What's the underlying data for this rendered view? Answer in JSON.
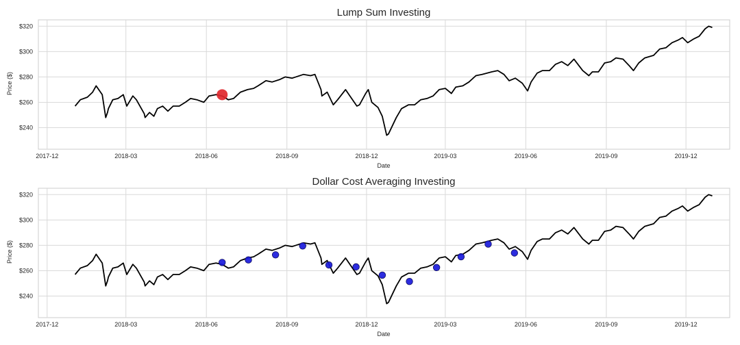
{
  "chart_data": [
    {
      "type": "line",
      "title": "Lump Sum Investing",
      "xlabel": "Date",
      "ylabel": "Price ($)",
      "xlim": [
        "2017-11-21",
        "2020-01-20"
      ],
      "ylim": [
        223,
        325
      ],
      "x_ticks": [
        "2017-12",
        "2018-03",
        "2018-06",
        "2018-09",
        "2018-12",
        "2019-03",
        "2019-06",
        "2019-09",
        "2019-12"
      ],
      "y_ticks": [
        "$240",
        "$260",
        "$280",
        "$300",
        "$320"
      ],
      "grid": true,
      "series": [
        {
          "color": "#000000",
          "x": [
            "2018-01-02",
            "2018-01-08",
            "2018-01-16",
            "2018-01-22",
            "2018-01-26",
            "2018-02-02",
            "2018-02-06",
            "2018-02-08",
            "2018-02-09",
            "2018-02-14",
            "2018-02-20",
            "2018-02-26",
            "2018-03-02",
            "2018-03-09",
            "2018-03-13",
            "2018-03-22",
            "2018-03-23",
            "2018-03-28",
            "2018-04-02",
            "2018-04-06",
            "2018-04-12",
            "2018-04-18",
            "2018-04-24",
            "2018-05-01",
            "2018-05-08",
            "2018-05-14",
            "2018-05-21",
            "2018-05-29",
            "2018-06-04",
            "2018-06-12",
            "2018-06-19",
            "2018-06-26",
            "2018-07-02",
            "2018-07-10",
            "2018-07-18",
            "2018-07-25",
            "2018-07-30",
            "2018-08-08",
            "2018-08-15",
            "2018-08-24",
            "2018-08-30",
            "2018-09-07",
            "2018-09-20",
            "2018-09-28",
            "2018-10-03",
            "2018-10-10",
            "2018-10-11",
            "2018-10-17",
            "2018-10-24",
            "2018-10-29",
            "2018-11-07",
            "2018-11-12",
            "2018-11-20",
            "2018-11-23",
            "2018-11-30",
            "2018-12-03",
            "2018-12-07",
            "2018-12-14",
            "2018-12-19",
            "2018-12-24",
            "2018-12-26",
            "2019-01-04",
            "2019-01-10",
            "2019-01-18",
            "2019-01-25",
            "2019-02-01",
            "2019-02-08",
            "2019-02-15",
            "2019-02-22",
            "2019-03-01",
            "2019-03-08",
            "2019-03-13",
            "2019-03-21",
            "2019-03-28",
            "2019-04-05",
            "2019-04-12",
            "2019-04-23",
            "2019-04-30",
            "2019-05-07",
            "2019-05-13",
            "2019-05-20",
            "2019-05-28",
            "2019-06-03",
            "2019-06-07",
            "2019-06-14",
            "2019-06-20",
            "2019-06-28",
            "2019-07-05",
            "2019-07-12",
            "2019-07-19",
            "2019-07-26",
            "2019-08-05",
            "2019-08-12",
            "2019-08-16",
            "2019-08-23",
            "2019-08-30",
            "2019-09-06",
            "2019-09-12",
            "2019-09-20",
            "2019-09-27",
            "2019-10-02",
            "2019-10-08",
            "2019-10-15",
            "2019-10-25",
            "2019-11-01",
            "2019-11-08",
            "2019-11-15",
            "2019-11-22",
            "2019-11-27",
            "2019-12-03",
            "2019-12-10",
            "2019-12-16",
            "2019-12-23",
            "2019-12-27",
            "2019-12-31"
          ],
          "y": [
            257,
            262,
            264,
            268,
            273,
            266,
            248,
            252,
            255,
            262,
            263,
            266,
            257,
            265,
            262,
            251,
            248,
            252,
            249,
            255,
            257,
            253,
            257,
            257,
            260,
            263,
            262,
            260,
            265,
            266,
            265,
            262,
            263,
            268,
            270,
            271,
            273,
            277,
            276,
            278,
            280,
            279,
            282,
            281,
            282,
            270,
            265,
            268,
            258,
            262,
            270,
            265,
            257,
            258,
            267,
            270,
            260,
            256,
            249,
            234,
            235,
            248,
            255,
            258,
            258,
            262,
            263,
            265,
            270,
            271,
            267,
            272,
            273,
            276,
            281,
            282,
            284,
            285,
            282,
            277,
            279,
            275,
            269,
            276,
            283,
            285,
            285,
            290,
            292,
            289,
            294,
            285,
            281,
            284,
            284,
            291,
            292,
            295,
            294,
            289,
            285,
            291,
            295,
            297,
            302,
            303,
            307,
            309,
            311,
            307,
            310,
            312,
            318,
            320,
            319
          ]
        }
      ],
      "markers": [
        {
          "x": "2018-06-19",
          "y": 266,
          "color": "#e0282e",
          "size": "large"
        }
      ]
    },
    {
      "type": "line",
      "title": "Dollar Cost Averaging Investing",
      "xlabel": "Date",
      "ylabel": "Price ($)",
      "xlim": [
        "2017-11-21",
        "2020-01-20"
      ],
      "ylim": [
        223,
        325
      ],
      "x_ticks": [
        "2017-12",
        "2018-03",
        "2018-06",
        "2018-09",
        "2018-12",
        "2019-03",
        "2019-06",
        "2019-09",
        "2019-12"
      ],
      "y_ticks": [
        "$240",
        "$260",
        "$280",
        "$300",
        "$320"
      ],
      "grid": true,
      "series": [
        {
          "color": "#000000",
          "x": [
            "2018-01-02",
            "2018-01-08",
            "2018-01-16",
            "2018-01-22",
            "2018-01-26",
            "2018-02-02",
            "2018-02-06",
            "2018-02-08",
            "2018-02-09",
            "2018-02-14",
            "2018-02-20",
            "2018-02-26",
            "2018-03-02",
            "2018-03-09",
            "2018-03-13",
            "2018-03-22",
            "2018-03-23",
            "2018-03-28",
            "2018-04-02",
            "2018-04-06",
            "2018-04-12",
            "2018-04-18",
            "2018-04-24",
            "2018-05-01",
            "2018-05-08",
            "2018-05-14",
            "2018-05-21",
            "2018-05-29",
            "2018-06-04",
            "2018-06-12",
            "2018-06-19",
            "2018-06-26",
            "2018-07-02",
            "2018-07-10",
            "2018-07-18",
            "2018-07-25",
            "2018-07-30",
            "2018-08-08",
            "2018-08-15",
            "2018-08-24",
            "2018-08-30",
            "2018-09-07",
            "2018-09-20",
            "2018-09-28",
            "2018-10-03",
            "2018-10-10",
            "2018-10-11",
            "2018-10-17",
            "2018-10-24",
            "2018-10-29",
            "2018-11-07",
            "2018-11-12",
            "2018-11-20",
            "2018-11-23",
            "2018-11-30",
            "2018-12-03",
            "2018-12-07",
            "2018-12-14",
            "2018-12-19",
            "2018-12-24",
            "2018-12-26",
            "2019-01-04",
            "2019-01-10",
            "2019-01-18",
            "2019-01-25",
            "2019-02-01",
            "2019-02-08",
            "2019-02-15",
            "2019-02-22",
            "2019-03-01",
            "2019-03-08",
            "2019-03-13",
            "2019-03-21",
            "2019-03-28",
            "2019-04-05",
            "2019-04-12",
            "2019-04-23",
            "2019-04-30",
            "2019-05-07",
            "2019-05-13",
            "2019-05-20",
            "2019-05-28",
            "2019-06-03",
            "2019-06-07",
            "2019-06-14",
            "2019-06-20",
            "2019-06-28",
            "2019-07-05",
            "2019-07-12",
            "2019-07-19",
            "2019-07-26",
            "2019-08-05",
            "2019-08-12",
            "2019-08-16",
            "2019-08-23",
            "2019-08-30",
            "2019-09-06",
            "2019-09-12",
            "2019-09-20",
            "2019-09-27",
            "2019-10-02",
            "2019-10-08",
            "2019-10-15",
            "2019-10-25",
            "2019-11-01",
            "2019-11-08",
            "2019-11-15",
            "2019-11-22",
            "2019-11-27",
            "2019-12-03",
            "2019-12-10",
            "2019-12-16",
            "2019-12-23",
            "2019-12-27",
            "2019-12-31"
          ],
          "y": [
            257,
            262,
            264,
            268,
            273,
            266,
            248,
            252,
            255,
            262,
            263,
            266,
            257,
            265,
            262,
            251,
            248,
            252,
            249,
            255,
            257,
            253,
            257,
            257,
            260,
            263,
            262,
            260,
            265,
            266,
            265,
            262,
            263,
            268,
            270,
            271,
            273,
            277,
            276,
            278,
            280,
            279,
            282,
            281,
            282,
            270,
            265,
            268,
            258,
            262,
            270,
            265,
            257,
            258,
            267,
            270,
            260,
            256,
            249,
            234,
            235,
            248,
            255,
            258,
            258,
            262,
            263,
            265,
            270,
            271,
            267,
            272,
            273,
            276,
            281,
            282,
            284,
            285,
            282,
            277,
            279,
            275,
            269,
            276,
            283,
            285,
            285,
            290,
            292,
            289,
            294,
            285,
            281,
            284,
            284,
            291,
            292,
            295,
            294,
            289,
            285,
            291,
            295,
            297,
            302,
            303,
            307,
            309,
            311,
            307,
            310,
            312,
            318,
            320,
            319
          ]
        }
      ],
      "markers": [
        {
          "x": "2018-06-19",
          "y": 266.5,
          "color": "#1a1adc",
          "size": "small"
        },
        {
          "x": "2018-07-19",
          "y": 268.5,
          "color": "#1a1adc",
          "size": "small"
        },
        {
          "x": "2018-08-19",
          "y": 272.5,
          "color": "#1a1adc",
          "size": "small"
        },
        {
          "x": "2018-09-19",
          "y": 279.5,
          "color": "#1a1adc",
          "size": "small"
        },
        {
          "x": "2018-10-19",
          "y": 264.5,
          "color": "#1a1adc",
          "size": "small"
        },
        {
          "x": "2018-11-19",
          "y": 263,
          "color": "#1a1adc",
          "size": "small"
        },
        {
          "x": "2018-12-19",
          "y": 256.5,
          "color": "#1a1adc",
          "size": "small"
        },
        {
          "x": "2019-01-19",
          "y": 251.5,
          "color": "#1a1adc",
          "size": "small"
        },
        {
          "x": "2019-02-19",
          "y": 262.5,
          "color": "#1a1adc",
          "size": "small"
        },
        {
          "x": "2019-03-19",
          "y": 271,
          "color": "#1a1adc",
          "size": "small"
        },
        {
          "x": "2019-04-19",
          "y": 281,
          "color": "#1a1adc",
          "size": "small"
        },
        {
          "x": "2019-05-19",
          "y": 274,
          "color": "#1a1adc",
          "size": "small"
        }
      ]
    }
  ]
}
